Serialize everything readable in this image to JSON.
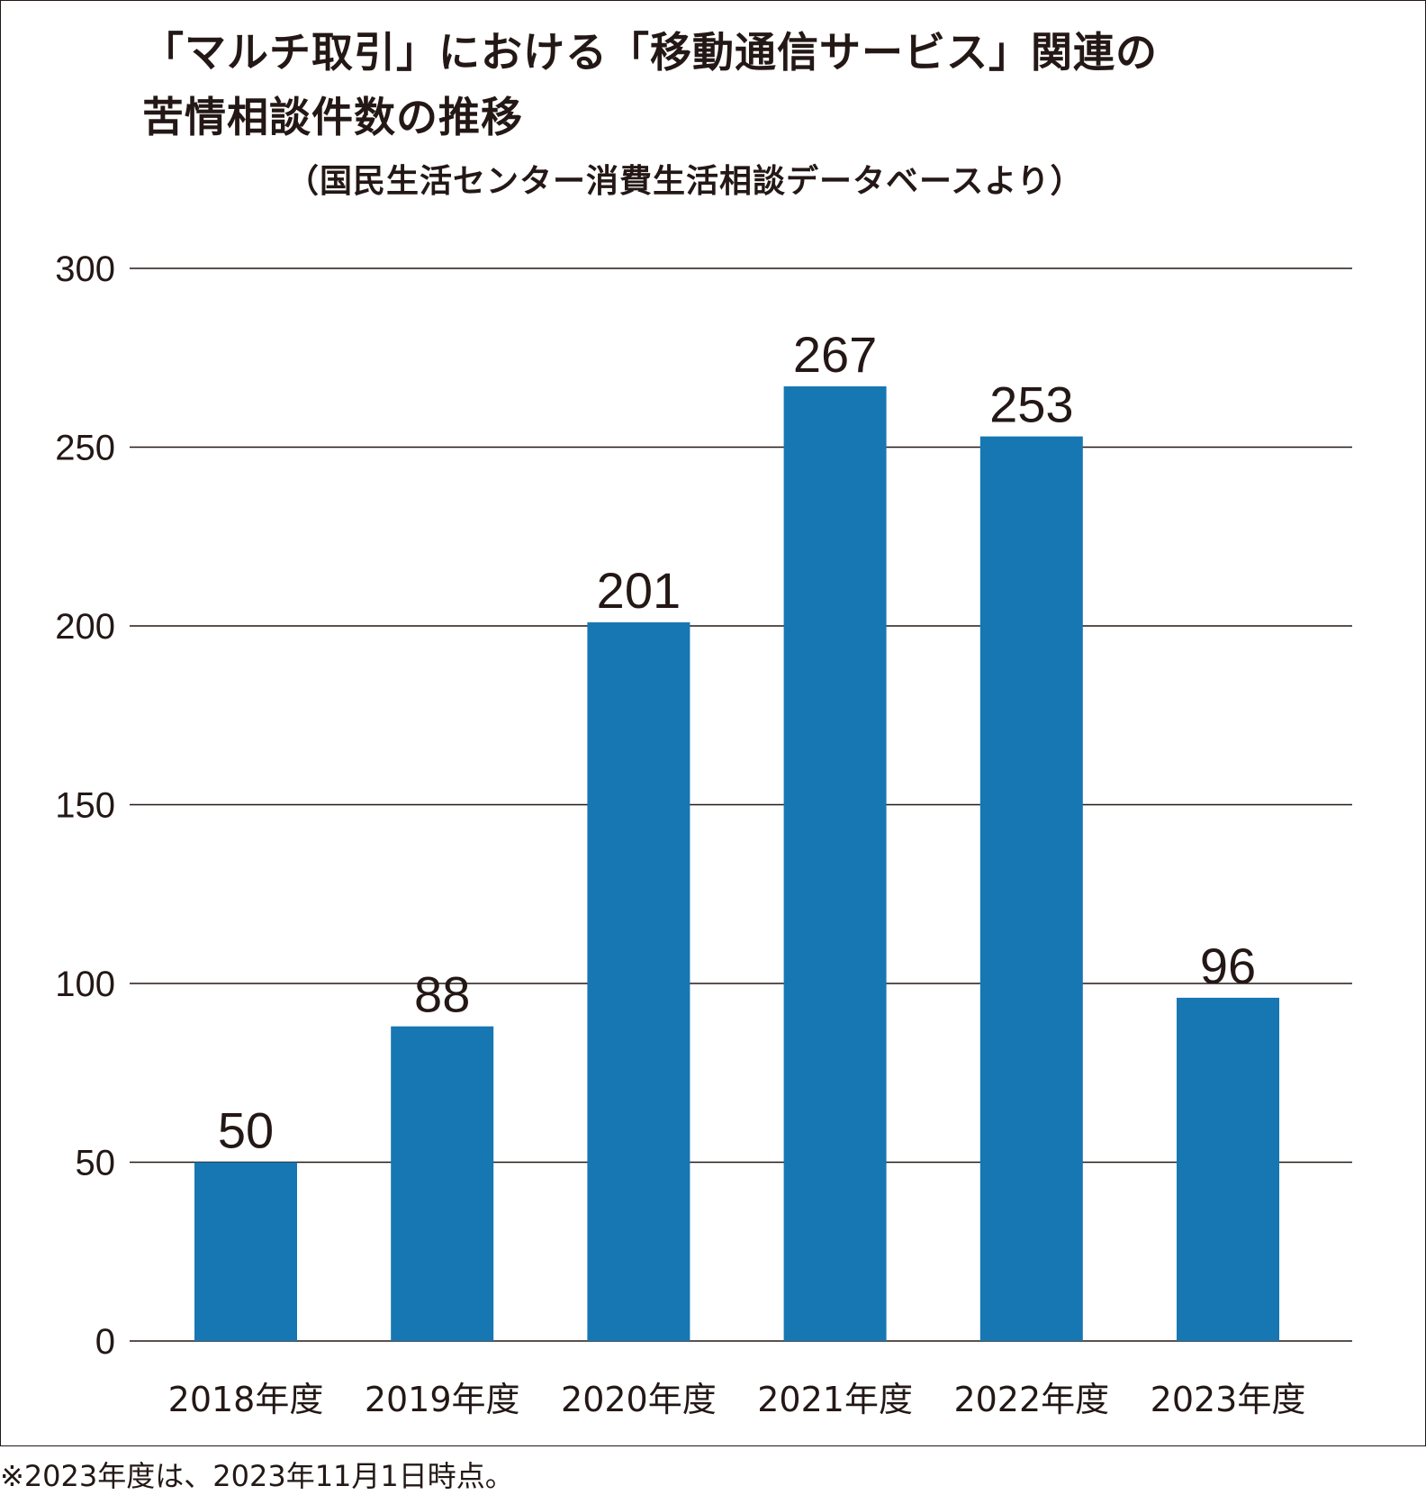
{
  "chart_data": {
    "type": "bar",
    "title_line1": "「マルチ取引」における「移動通信サービス」関連の",
    "title_line2": "苦情相談件数の推移",
    "subtitle": "（国民生活センター消費生活相談データベースより）",
    "categories": [
      "2018年度",
      "2019年度",
      "2020年度",
      "2021年度",
      "2022年度",
      "2023年度"
    ],
    "values": [
      50,
      88,
      201,
      267,
      253,
      96
    ],
    "value_labels": [
      "50",
      "88",
      "201",
      "267",
      "253",
      "96"
    ],
    "yticks": [
      "0",
      "50",
      "100",
      "150",
      "200",
      "250",
      "300"
    ],
    "ylim": [
      0,
      300
    ],
    "grid": true,
    "bar_color": "#1677b3",
    "note": "※2023年度は、2023年11月1日時点。"
  }
}
